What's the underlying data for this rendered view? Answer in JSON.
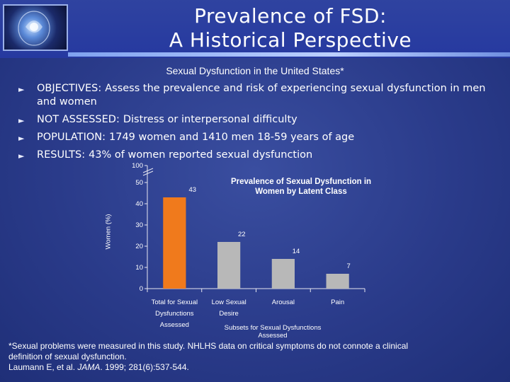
{
  "title": {
    "line1": "Prevalence of FSD:",
    "line2": "A Historical Perspective"
  },
  "subtitle": "Sexual Dysfunction in the United States*",
  "bullets": [
    {
      "label": "OBJECTIVES:",
      "text": "Assess the prevalence and risk of experiencing sexual dysfunction in men and women"
    },
    {
      "label": "NOT ASSESSED:",
      "text": "Distress or interpersonal difficulty"
    },
    {
      "label": "POPULATION:",
      "text": "1749 women and 1410 men 18-59 years of age"
    },
    {
      "label": "RESULTS:",
      "text": "43% of women reported sexual dysfunction"
    }
  ],
  "colors": {
    "bar_highlight": "#f07a1c",
    "bar_gray": "#b8b8b8",
    "axis": "#e6e6f0"
  },
  "chart_data": {
    "type": "bar",
    "title": "Prevalence of Sexual Dysfunction in Women by Latent Class",
    "ylabel": "Women (%)",
    "xlabel": "Subsets for Sexual Dysfunctions Assessed",
    "ylim": [
      0,
      50
    ],
    "axis_break_label": "100",
    "yticks": [
      0,
      10,
      20,
      30,
      40,
      50
    ],
    "categories": [
      [
        "Total for Sexual",
        "Dysfunctions",
        "Assessed"
      ],
      [
        "Low Sexual",
        "Desire"
      ],
      [
        "Arousal"
      ],
      [
        "Pain"
      ]
    ],
    "values": [
      43,
      22,
      14,
      7
    ],
    "data_labels": [
      "43",
      "22",
      "14",
      "7"
    ]
  },
  "footnote": {
    "line1": "*Sexual problems were measured in this study. NHLHS data on critical symptoms do not connote a clinical",
    "line2": "definition of sexual dysfunction.",
    "citation_prefix": "Laumann E, et al. ",
    "journal": "JAMA",
    "citation_suffix": ". 1999; 281(6):537-544."
  }
}
